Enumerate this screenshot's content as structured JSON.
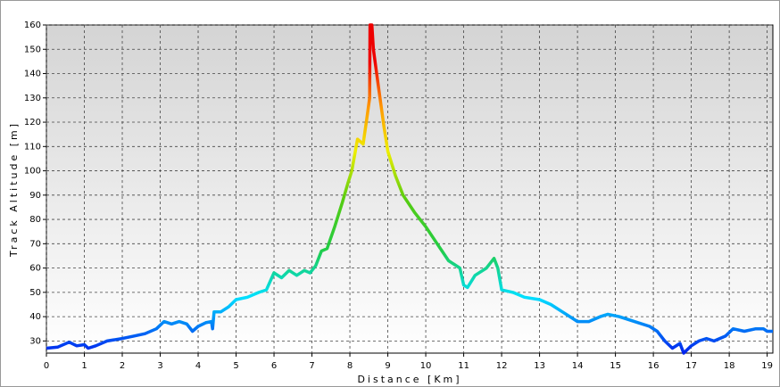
{
  "chart_data": {
    "type": "line",
    "xlabel": "Distance [Km]",
    "ylabel": "Track Altitude [m]",
    "x": [
      0,
      0.3,
      0.6,
      0.8,
      1.0,
      1.1,
      1.3,
      1.6,
      2,
      2.3,
      2.6,
      2.9,
      3.1,
      3.3,
      3.5,
      3.7,
      3.85,
      4.0,
      4.2,
      4.35,
      4.38,
      4.42,
      4.6,
      4.8,
      5.0,
      5.3,
      5.6,
      5.8,
      6.0,
      6.2,
      6.4,
      6.6,
      6.8,
      6.95,
      7.1,
      7.25,
      7.4,
      7.6,
      7.8,
      7.95,
      8.05,
      8.2,
      8.35,
      8.45,
      8.52,
      8.53,
      8.58,
      8.62,
      8.75,
      8.9,
      9.0,
      9.2,
      9.4,
      9.7,
      10.0,
      10.3,
      10.6,
      10.9,
      11.0,
      11.1,
      11.3,
      11.6,
      11.8,
      11.9,
      12.0,
      12.3,
      12.6,
      13.0,
      13.3,
      13.6,
      14.0,
      14.3,
      14.6,
      14.8,
      15.1,
      15.5,
      15.9,
      16.1,
      16.3,
      16.5,
      16.7,
      16.8,
      17.0,
      17.2,
      17.4,
      17.6,
      17.9,
      18.1,
      18.4,
      18.7,
      18.9,
      19.0,
      19.15
    ],
    "values": [
      27,
      27.5,
      29.5,
      28,
      28.5,
      27,
      28,
      30,
      31,
      32,
      33,
      35,
      38,
      37,
      38,
      37,
      34,
      36,
      37.5,
      38,
      35,
      42,
      42,
      44,
      47,
      48,
      50,
      51,
      58,
      56,
      59,
      57,
      59,
      58,
      61,
      67,
      68,
      77,
      87,
      95,
      100,
      113,
      111,
      122,
      130,
      160,
      160,
      150,
      135,
      118,
      108,
      98,
      90,
      83,
      77,
      70,
      63,
      60,
      53,
      52,
      57,
      60,
      64,
      60,
      51,
      50,
      48,
      47,
      45,
      42,
      38,
      38,
      40,
      41,
      40,
      38,
      36,
      34,
      30,
      27,
      29,
      25,
      28,
      30,
      31,
      30,
      32,
      35,
      34,
      35,
      35,
      34,
      34
    ],
    "colorscale": [
      [
        25,
        "#0022ee"
      ],
      [
        48,
        "#00e0ff"
      ],
      [
        68,
        "#22cc44"
      ],
      [
        88,
        "#55cc11"
      ],
      [
        108,
        "#eeee00"
      ],
      [
        126,
        "#ff9900"
      ],
      [
        145,
        "#ee0000"
      ]
    ],
    "xlim": [
      0,
      19.15
    ],
    "ylim": [
      25,
      160
    ],
    "xticks": [
      0,
      1,
      2,
      3,
      4,
      5,
      6,
      7,
      8,
      9,
      10,
      11,
      12,
      13,
      14,
      15,
      16,
      17,
      18,
      19
    ],
    "yticks": [
      30,
      40,
      50,
      60,
      70,
      80,
      90,
      100,
      110,
      120,
      130,
      140,
      150,
      160
    ],
    "grid": true
  }
}
